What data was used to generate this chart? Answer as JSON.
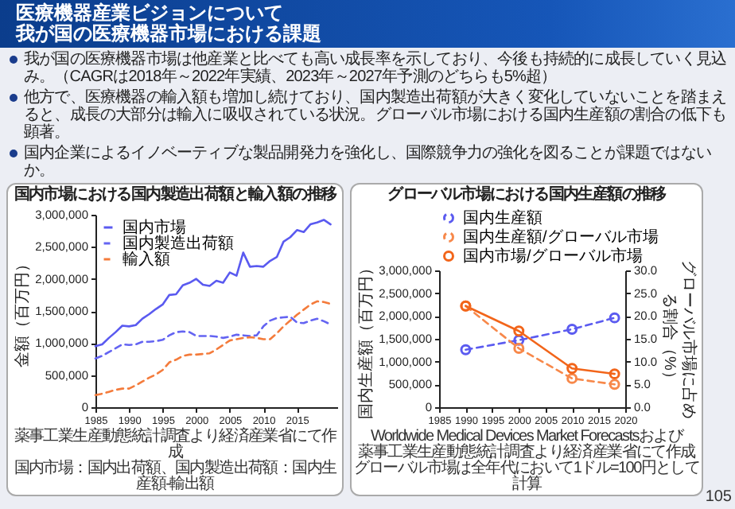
{
  "chart_data": [
    {
      "type": "other",
      "title": "医療機器産業ビジョンについて",
      "subtitle": "我が国の医療機器市場における課題",
      "annotations": [
        "我が国の医療機器市場は他産業と比べても高い成長率を示しており、今後も持続的に成長していく見込み。（CAGRは2018年～2022年実績、2023年～2027年予測のどちらも5%超）",
        "他方で、医療機器の輸入額も増加し続けており、国内製造出荷額が大きく変化していないことを踏まえると、成長の大部分は輸入に吸収されている状況。グローバル市場における国内生産額の割合の低下も顕著。",
        "国内企業によるイノベーティブな製品開発力を強化し、国際競争力の強化を図ることが課題ではないか。",
        "105"
      ]
    },
    {
      "type": "line",
      "title": "国内市場における国内製造出荷額と輸入額の推移",
      "ylabel": "金額（百万円）",
      "x": [
        1985,
        1986,
        1987,
        1988,
        1989,
        1990,
        1991,
        1992,
        1993,
        1994,
        1995,
        1996,
        1997,
        1998,
        1999,
        2000,
        2001,
        2002,
        2003,
        2004,
        2005,
        2006,
        2007,
        2008,
        2009,
        2010,
        2011,
        2012,
        2013,
        2014,
        2015,
        2016,
        2017,
        2018,
        2019,
        2020
      ],
      "xlim": [
        1985,
        2021
      ],
      "xticks": [
        1985,
        1990,
        1995,
        2000,
        2005,
        2010,
        2015
      ],
      "ylim": [
        0,
        3000000
      ],
      "yticks": [
        0,
        {
          "value": 500000,
          "label": "500,000"
        },
        {
          "value": 1000000,
          "label": "1,000,000"
        },
        {
          "value": 1500000,
          "label": "1,500,000"
        },
        {
          "value": 2000000,
          "label": "2,000,000"
        },
        {
          "value": 2500000,
          "label": "2,500,000"
        },
        {
          "value": 3000000,
          "label": "3,000,000"
        }
      ],
      "legend": "top left",
      "series": [
        {
          "name": "国内市場",
          "color": "#5a5af0",
          "line_style": "solid",
          "values": [
            950000,
            980000,
            1080000,
            1170000,
            1270000,
            1260000,
            1280000,
            1380000,
            1450000,
            1530000,
            1600000,
            1750000,
            1760000,
            1900000,
            1940000,
            2000000,
            1910000,
            1890000,
            1970000,
            1940000,
            2100000,
            2050000,
            2410000,
            2190000,
            2200000,
            2190000,
            2280000,
            2340000,
            2580000,
            2650000,
            2760000,
            2730000,
            2850000,
            2880000,
            2920000,
            2850000
          ]
        },
        {
          "name": "国内製造出荷額",
          "color": "#6464f2",
          "line_style": "dashed",
          "values": [
            760000,
            800000,
            860000,
            920000,
            980000,
            970000,
            980000,
            1020000,
            1020000,
            1030000,
            1050000,
            1120000,
            1170000,
            1180000,
            1170000,
            1110000,
            1110000,
            1110000,
            1100000,
            1080000,
            1100000,
            1130000,
            1120000,
            1110000,
            1120000,
            1260000,
            1350000,
            1390000,
            1400000,
            1410000,
            1320000,
            1310000,
            1350000,
            1380000,
            1340000,
            1290000
          ]
        },
        {
          "name": "輸入額",
          "color": "#f47b3b",
          "line_style": "dashed",
          "values": [
            190000,
            210000,
            240000,
            270000,
            290000,
            290000,
            340000,
            400000,
            460000,
            510000,
            580000,
            700000,
            740000,
            800000,
            820000,
            820000,
            830000,
            840000,
            900000,
            970000,
            1040000,
            1060000,
            1080000,
            1090000,
            1080000,
            1060000,
            1060000,
            1150000,
            1260000,
            1350000,
            1440000,
            1520000,
            1600000,
            1650000,
            1640000,
            1610000
          ]
        }
      ],
      "annotations": [
        "薬事工業生産動態統計調査より経済産業省にて作成",
        "国内市場：国内出荷額、国内製造出荷額：国内生産額-輸出額"
      ]
    },
    {
      "type": "line",
      "title": "グローバル市場における国内生産額の推移",
      "ylabel": "国内生産額（百万円）",
      "y2label": "グローバル市場に占める割合（%）",
      "x": [
        1990,
        2000,
        2010,
        2018
      ],
      "xlim": [
        1985,
        2020
      ],
      "xticks": [
        1985,
        1990,
        1995,
        2000,
        2005,
        2010,
        2015,
        2020
      ],
      "ylim": [
        0,
        3000000
      ],
      "yticks": [
        0,
        {
          "value": 500000,
          "label": "500,000"
        },
        {
          "value": 1000000,
          "label": "1,000,000"
        },
        {
          "value": 1500000,
          "label": "1,500,000"
        },
        {
          "value": 2000000,
          "label": "2,000,000"
        },
        {
          "value": 2500000,
          "label": "2,500,000"
        },
        {
          "value": 3000000,
          "label": "3,000,000"
        }
      ],
      "y2lim": [
        0,
        30
      ],
      "y2ticks": [
        {
          "value": 0,
          "label": "0.0"
        },
        {
          "value": 5,
          "label": "5.0"
        },
        {
          "value": 10,
          "label": "10.0"
        },
        {
          "value": 15,
          "label": "15.0"
        },
        {
          "value": 20,
          "label": "20.0"
        },
        {
          "value": 25,
          "label": "25.0"
        },
        {
          "value": 30,
          "label": "30.0"
        }
      ],
      "legend": "top",
      "marker": "circle",
      "series": [
        {
          "name": "国内生産額",
          "color": "#5b5bf0",
          "line_style": "dashed",
          "values": [
            1260000,
            1470000,
            1710000,
            1960000
          ]
        },
        {
          "name": "国内生産額/グローバル市場",
          "color": "#f7884a",
          "line_style": "dashed",
          "axis": "y2",
          "values": [
            22.2,
            12.9,
            6.3,
            5.0
          ]
        },
        {
          "name": "国内市場/グローバル市場",
          "color": "#f2651a",
          "line_style": "solid",
          "axis": "y2",
          "values": [
            22.2,
            16.7,
            8.5,
            7.3
          ]
        }
      ],
      "annotations": [
        "Worldwide Medical Devices Market Forecastsおよび",
        "薬事工業生産動態統計調査より経済産業省にて作成",
        "グローバル市場は全年代において1ドル=100円として計算"
      ]
    }
  ]
}
